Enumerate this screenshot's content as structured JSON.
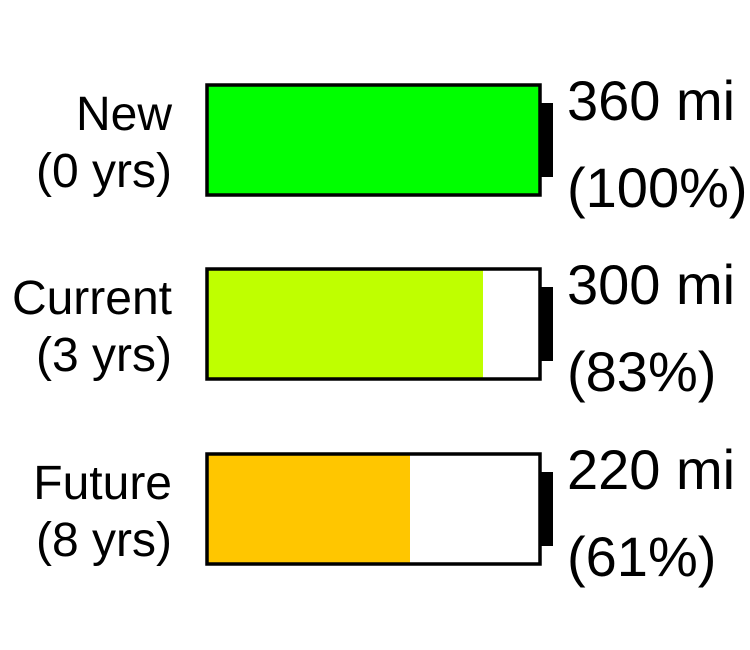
{
  "chart_data": {
    "type": "bar",
    "title": "",
    "xlabel": "",
    "ylabel": "",
    "xlim": [
      0,
      100
    ],
    "categories": [
      {
        "name": "New",
        "age": "(0 yrs)"
      },
      {
        "name": "Current",
        "age": "(3 yrs)"
      },
      {
        "name": "Future",
        "age": "(8 yrs)"
      }
    ],
    "series": [
      {
        "values_percent": [
          100,
          83,
          61
        ],
        "range_labels": [
          "360 mi",
          "300 mi",
          "220 mi"
        ],
        "percent_labels": [
          "(100%)",
          "(83%)",
          "(61%)"
        ],
        "colors": [
          "#00ff00",
          "#bfff00",
          "#ffc600"
        ]
      }
    ],
    "grid": false,
    "legend": "none"
  }
}
